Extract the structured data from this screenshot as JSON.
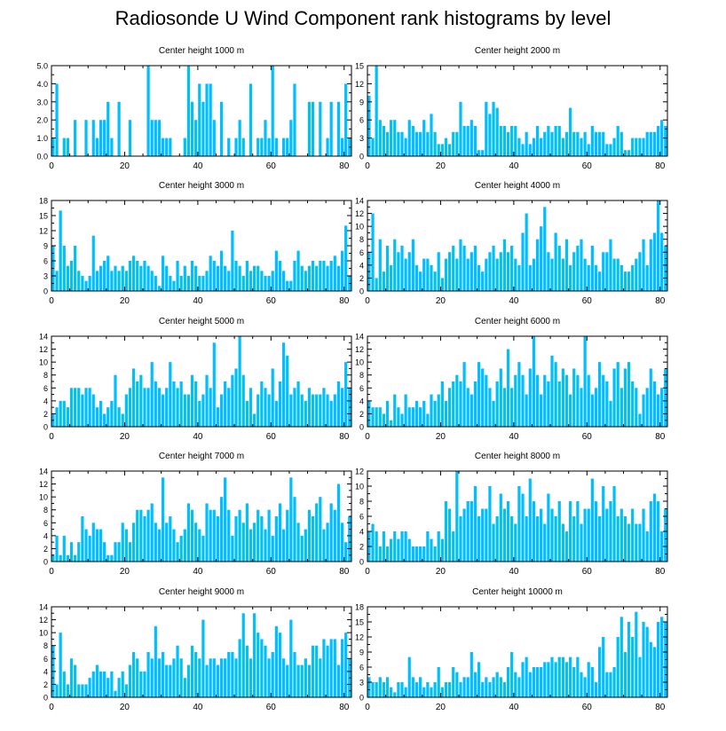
{
  "title": "Radiosonde U Wind Component rank histograms by level",
  "bar_color": "#00BFFF",
  "chart_data": [
    {
      "type": "bar",
      "title": "Center height 1000 m",
      "ylim": [
        0,
        5
      ],
      "yticks": [
        0,
        1,
        2,
        3,
        4,
        5
      ],
      "ytick_labels": [
        "0.0",
        "1.0",
        "2.0",
        "3.0",
        "4.0",
        "5.0"
      ],
      "xlim": [
        0,
        82
      ],
      "xticks": [
        0,
        20,
        40,
        60,
        80
      ],
      "values": [
        1,
        4,
        0,
        1,
        1,
        0,
        2,
        0,
        0,
        2,
        0,
        2,
        1,
        2,
        2,
        3,
        1,
        0,
        3,
        0,
        0,
        2,
        0,
        0,
        0,
        0,
        5,
        2,
        2,
        2,
        1,
        1,
        1,
        0,
        0,
        0,
        1,
        5,
        3,
        2,
        4,
        3,
        4,
        4,
        2,
        0,
        3,
        0,
        1,
        0,
        1,
        2,
        1,
        0,
        4,
        0,
        1,
        1,
        2,
        1,
        5,
        1,
        0,
        1,
        1,
        2,
        4,
        0,
        0,
        0,
        3,
        3,
        0,
        3,
        0,
        1,
        3,
        0,
        3,
        1,
        4,
        1
      ]
    },
    {
      "type": "bar",
      "title": "Center height 2000 m",
      "ylim": [
        0,
        15
      ],
      "yticks": [
        0,
        3,
        6,
        9,
        12,
        15
      ],
      "ytick_labels": [
        "0",
        "3",
        "6",
        "9",
        "12",
        "15"
      ],
      "xlim": [
        0,
        82
      ],
      "xticks": [
        0,
        20,
        40,
        60,
        80
      ],
      "values": [
        10,
        3,
        15,
        6,
        5,
        4,
        6,
        6,
        4,
        4,
        3,
        6,
        5,
        4,
        4,
        6,
        4,
        7,
        4,
        2,
        2,
        3,
        2,
        4,
        4,
        9,
        5,
        5,
        6,
        5,
        1,
        1,
        9,
        7,
        9,
        8,
        5,
        5,
        4,
        5,
        5,
        3,
        2,
        4,
        2,
        3,
        5,
        3,
        4,
        5,
        4,
        5,
        5,
        3,
        4,
        8,
        4,
        4,
        3,
        4,
        2,
        5,
        4,
        4,
        4,
        2,
        2,
        3,
        5,
        4,
        1,
        1,
        3,
        3,
        3,
        3,
        4,
        4,
        4,
        5,
        6,
        5
      ]
    },
    {
      "type": "bar",
      "title": "Center height 3000 m",
      "ylim": [
        0,
        18
      ],
      "yticks": [
        0,
        3,
        6,
        9,
        12,
        15,
        18
      ],
      "ytick_labels": [
        "0",
        "3",
        "6",
        "9",
        "12",
        "15",
        "18"
      ],
      "xlim": [
        0,
        82
      ],
      "xticks": [
        0,
        20,
        40,
        60,
        80
      ],
      "values": [
        9,
        4,
        16,
        9,
        5,
        6,
        9,
        4,
        3,
        2,
        3,
        11,
        4,
        5,
        6,
        7,
        4,
        5,
        4,
        5,
        4,
        6,
        7,
        6,
        5,
        6,
        5,
        4,
        3,
        1,
        7,
        5,
        3,
        2,
        6,
        3,
        5,
        3,
        6,
        5,
        3,
        3,
        4,
        7,
        6,
        5,
        8,
        5,
        4,
        12,
        6,
        5,
        3,
        6,
        4,
        5,
        5,
        4,
        3,
        3,
        4,
        8,
        6,
        4,
        2,
        2,
        6,
        8,
        5,
        4,
        5,
        6,
        5,
        6,
        6,
        5,
        6,
        7,
        5,
        8,
        13,
        3
      ]
    },
    {
      "type": "bar",
      "title": "Center height 4000 m",
      "ylim": [
        0,
        14
      ],
      "yticks": [
        0,
        2,
        4,
        6,
        8,
        10,
        12,
        14
      ],
      "ytick_labels": [
        "0",
        "2",
        "4",
        "6",
        "8",
        "10",
        "12",
        "14"
      ],
      "xlim": [
        0,
        82
      ],
      "xticks": [
        0,
        20,
        40,
        60,
        80
      ],
      "values": [
        6,
        12,
        2,
        8,
        3,
        7,
        4,
        8,
        6,
        7,
        5,
        6,
        8,
        4,
        3,
        5,
        5,
        4,
        3,
        6,
        2,
        5,
        6,
        7,
        5,
        8,
        7,
        5,
        6,
        7,
        4,
        3,
        5,
        6,
        7,
        5,
        6,
        8,
        6,
        7,
        5,
        4,
        9,
        12,
        4,
        5,
        8,
        10,
        13,
        6,
        5,
        9,
        7,
        5,
        8,
        4,
        6,
        7,
        8,
        5,
        4,
        7,
        4,
        3,
        6,
        6,
        8,
        5,
        5,
        4,
        3,
        3,
        4,
        5,
        6,
        8,
        4,
        8,
        9,
        14,
        9,
        7
      ]
    },
    {
      "type": "bar",
      "title": "Center height 5000 m",
      "ylim": [
        0,
        14
      ],
      "yticks": [
        0,
        2,
        4,
        6,
        8,
        10,
        12,
        14
      ],
      "ytick_labels": [
        "0",
        "2",
        "4",
        "6",
        "8",
        "10",
        "12",
        "14"
      ],
      "xlim": [
        0,
        82
      ],
      "xticks": [
        0,
        20,
        40,
        60,
        80
      ],
      "values": [
        2,
        3,
        4,
        4,
        3,
        6,
        6,
        6,
        5,
        6,
        6,
        5,
        3,
        4,
        2,
        3,
        4,
        8,
        3,
        2,
        5,
        6,
        9,
        7,
        8,
        6,
        6,
        10,
        7,
        6,
        5,
        6,
        10,
        7,
        6,
        7,
        5,
        5,
        8,
        7,
        4,
        5,
        8,
        6,
        13,
        3,
        5,
        7,
        6,
        8,
        9,
        14,
        8,
        4,
        6,
        2,
        5,
        7,
        6,
        5,
        9,
        4,
        7,
        13,
        11,
        5,
        6,
        7,
        5,
        4,
        6,
        5,
        5,
        5,
        6,
        5,
        4,
        5,
        7,
        6,
        10,
        6
      ]
    },
    {
      "type": "bar",
      "title": "Center height 6000 m",
      "ylim": [
        0,
        14
      ],
      "yticks": [
        0,
        2,
        4,
        6,
        8,
        10,
        12,
        14
      ],
      "ytick_labels": [
        "0",
        "2",
        "4",
        "6",
        "8",
        "10",
        "12",
        "14"
      ],
      "xlim": [
        0,
        82
      ],
      "xticks": [
        0,
        20,
        40,
        60,
        80
      ],
      "values": [
        4,
        3,
        3,
        3,
        2,
        4,
        1,
        5,
        3,
        2,
        5,
        3,
        3,
        4,
        3,
        4,
        2,
        5,
        4,
        5,
        7,
        4,
        6,
        7,
        8,
        7,
        10,
        6,
        5,
        7,
        10,
        9,
        8,
        6,
        4,
        7,
        9,
        6,
        12,
        6,
        8,
        10,
        8,
        5,
        9,
        14,
        8,
        5,
        8,
        7,
        11,
        10,
        7,
        9,
        8,
        5,
        9,
        8,
        6,
        14,
        8,
        5,
        6,
        10,
        8,
        7,
        4,
        9,
        10,
        6,
        9,
        10,
        7,
        6,
        2,
        5,
        6,
        9,
        7,
        5,
        6,
        9
      ]
    },
    {
      "type": "bar",
      "title": "Center height 7000 m",
      "ylim": [
        0,
        14
      ],
      "yticks": [
        0,
        2,
        4,
        6,
        8,
        10,
        12,
        14
      ],
      "ytick_labels": [
        "0",
        "2",
        "4",
        "6",
        "8",
        "10",
        "12",
        "14"
      ],
      "xlim": [
        0,
        82
      ],
      "xticks": [
        0,
        20,
        40,
        60,
        80
      ],
      "values": [
        1,
        4,
        1,
        4,
        1,
        3,
        1,
        3,
        7,
        5,
        4,
        6,
        5,
        5,
        3,
        1,
        1,
        3,
        3,
        6,
        5,
        3,
        6,
        8,
        8,
        7,
        8,
        9,
        6,
        5,
        13,
        6,
        7,
        5,
        3,
        4,
        5,
        9,
        8,
        6,
        5,
        4,
        9,
        8,
        8,
        7,
        10,
        13,
        8,
        4,
        7,
        8,
        6,
        9,
        5,
        6,
        8,
        7,
        5,
        8,
        4,
        7,
        9,
        5,
        8,
        13,
        10,
        6,
        4,
        5,
        8,
        7,
        9,
        10,
        5,
        6,
        9,
        8,
        12,
        6,
        3,
        7
      ]
    },
    {
      "type": "bar",
      "title": "Center height 8000 m",
      "ylim": [
        0,
        12
      ],
      "yticks": [
        0,
        2,
        4,
        6,
        8,
        10,
        12
      ],
      "ytick_labels": [
        "0",
        "2",
        "4",
        "6",
        "8",
        "10",
        "12"
      ],
      "xlim": [
        0,
        82
      ],
      "xticks": [
        0,
        20,
        40,
        60,
        80
      ],
      "values": [
        4,
        5,
        4,
        2,
        4,
        2,
        3,
        4,
        3,
        4,
        4,
        3,
        2,
        2,
        2,
        2,
        4,
        3,
        2,
        4,
        3,
        8,
        7,
        4,
        12,
        6,
        7,
        8,
        8,
        10,
        6,
        7,
        7,
        10,
        5,
        6,
        9,
        7,
        8,
        6,
        5,
        10,
        9,
        6,
        11,
        8,
        6,
        7,
        5,
        9,
        7,
        6,
        8,
        5,
        4,
        8,
        6,
        8,
        5,
        7,
        7,
        11,
        8,
        6,
        10,
        7,
        8,
        10,
        6,
        7,
        6,
        5,
        7,
        5,
        5,
        7,
        4,
        8,
        9,
        8,
        4,
        7
      ]
    },
    {
      "type": "bar",
      "title": "Center height 9000 m",
      "ylim": [
        0,
        14
      ],
      "yticks": [
        0,
        2,
        4,
        6,
        8,
        10,
        12,
        14
      ],
      "ytick_labels": [
        "0",
        "2",
        "4",
        "6",
        "8",
        "10",
        "12",
        "14"
      ],
      "xlim": [
        0,
        82
      ],
      "xticks": [
        0,
        20,
        40,
        60,
        80
      ],
      "values": [
        8,
        2,
        10,
        4,
        2,
        6,
        5,
        2,
        2,
        2,
        3,
        4,
        5,
        4,
        4,
        3,
        4,
        1,
        3,
        4,
        2,
        5,
        7,
        6,
        4,
        4,
        7,
        6,
        11,
        6,
        7,
        5,
        5,
        6,
        8,
        6,
        3,
        5,
        8,
        7,
        6,
        12,
        5,
        6,
        6,
        5,
        6,
        6,
        7,
        7,
        6,
        9,
        13,
        8,
        6,
        13,
        10,
        9,
        8,
        6,
        7,
        11,
        10,
        6,
        5,
        12,
        7,
        5,
        5,
        6,
        5,
        8,
        8,
        6,
        9,
        8,
        9,
        9,
        5,
        9,
        10,
        6
      ]
    },
    {
      "type": "bar",
      "title": "Center height 10000 m",
      "ylim": [
        0,
        18
      ],
      "yticks": [
        0,
        3,
        6,
        9,
        12,
        15,
        18
      ],
      "ytick_labels": [
        "0",
        "3",
        "6",
        "9",
        "12",
        "15",
        "18"
      ],
      "xlim": [
        0,
        82
      ],
      "xticks": [
        0,
        20,
        40,
        60,
        80
      ],
      "values": [
        4,
        3,
        3,
        4,
        3,
        4,
        2,
        1,
        3,
        3,
        2,
        8,
        4,
        3,
        4,
        2,
        3,
        2,
        3,
        6,
        2,
        3,
        3,
        6,
        5,
        3,
        4,
        4,
        9,
        5,
        7,
        3,
        4,
        3,
        4,
        5,
        4,
        3,
        6,
        9,
        5,
        4,
        7,
        8,
        5,
        6,
        6,
        6,
        7,
        7,
        8,
        7,
        8,
        8,
        7,
        8,
        6,
        8,
        5,
        4,
        7,
        6,
        3,
        10,
        12,
        5,
        5,
        6,
        12,
        16,
        9,
        15,
        12,
        17,
        8,
        15,
        14,
        11,
        10,
        15,
        16,
        15
      ]
    }
  ]
}
